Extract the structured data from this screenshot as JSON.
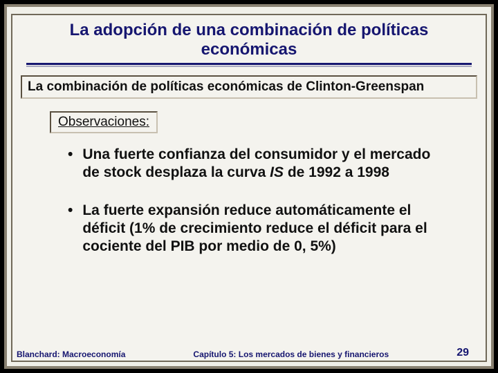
{
  "title": "La adopción de una combinación de políticas económicas",
  "subtitle": "La combinación de políticas económicas de Clinton-Greenspan",
  "observations_label": "Observaciones:",
  "bullets": [
    {
      "pre": "Una fuerte confianza del consumidor y el mercado de stock desplaza la curva ",
      "italic": "IS",
      "post": " de 1992 a 1998"
    },
    {
      "pre": "La fuerte expansión reduce automáticamente el déficit (1% de crecimiento reduce el déficit para el cociente del PIB por medio de 0, 5%)",
      "italic": "",
      "post": ""
    }
  ],
  "footer": {
    "left": "Blanchard: Macroeconomía",
    "center": "Capítulo 5: Los mercados de bienes y financieros",
    "page": "29"
  },
  "colors": {
    "title_color": "#161670",
    "frame_border": "#888070",
    "inner_border": "#706858",
    "background": "#f4f3ee"
  }
}
